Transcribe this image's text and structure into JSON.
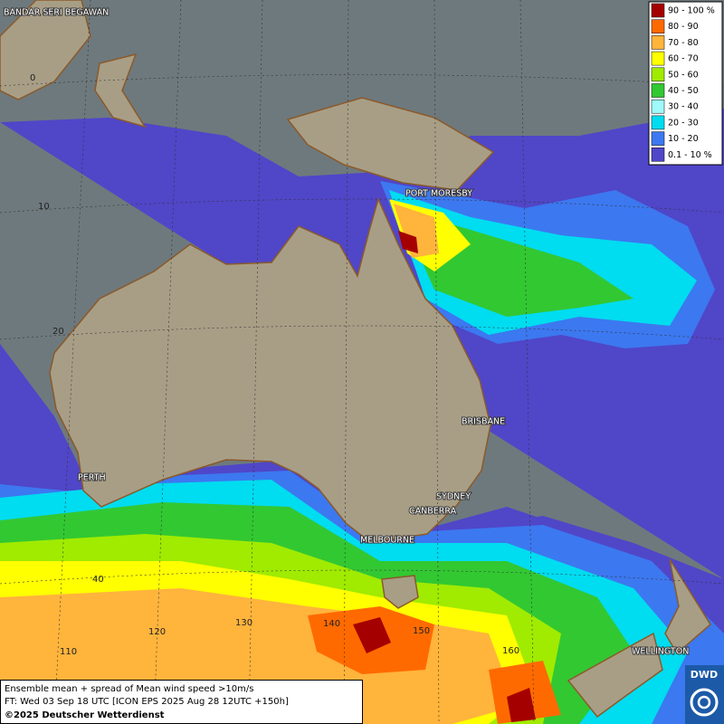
{
  "legend": {
    "items": [
      {
        "label": "90 - 100 %",
        "color": "#a50000"
      },
      {
        "label": "80 - 90",
        "color": "#ff6a00"
      },
      {
        "label": "70 - 80",
        "color": "#ffb43c"
      },
      {
        "label": "60 - 70",
        "color": "#ffff00"
      },
      {
        "label": "50 - 60",
        "color": "#a0eb00"
      },
      {
        "label": "40 - 50",
        "color": "#32c832"
      },
      {
        "label": "30 - 40",
        "color": "#a0fafa"
      },
      {
        "label": "20 - 30",
        "color": "#00dcf0"
      },
      {
        "label": "10 - 20",
        "color": "#3c78f0"
      },
      {
        "label": "0.1 - 10 %",
        "color": "#5046c8"
      }
    ]
  },
  "places": [
    "BANDAR SERI BEGAWAN",
    "PORT MORESBY",
    "BRISBANE",
    "PERTH",
    "SYDNEY",
    "CANBERRA",
    "MELBOURNE",
    "WELLINGTON"
  ],
  "graticule_labels": [
    "0",
    "10",
    "20",
    "40",
    "110",
    "120",
    "130",
    "140",
    "150",
    "160"
  ],
  "info": {
    "line1": "Ensemble mean + spread of Mean wind speed >10m/s",
    "line2": "FT: Wed 03 Sep 18 UTC [ICON EPS 2025 Aug 28 12UTC +150h]",
    "line3": "©2025 Deutscher Wetterdienst"
  },
  "logo": "DWD"
}
